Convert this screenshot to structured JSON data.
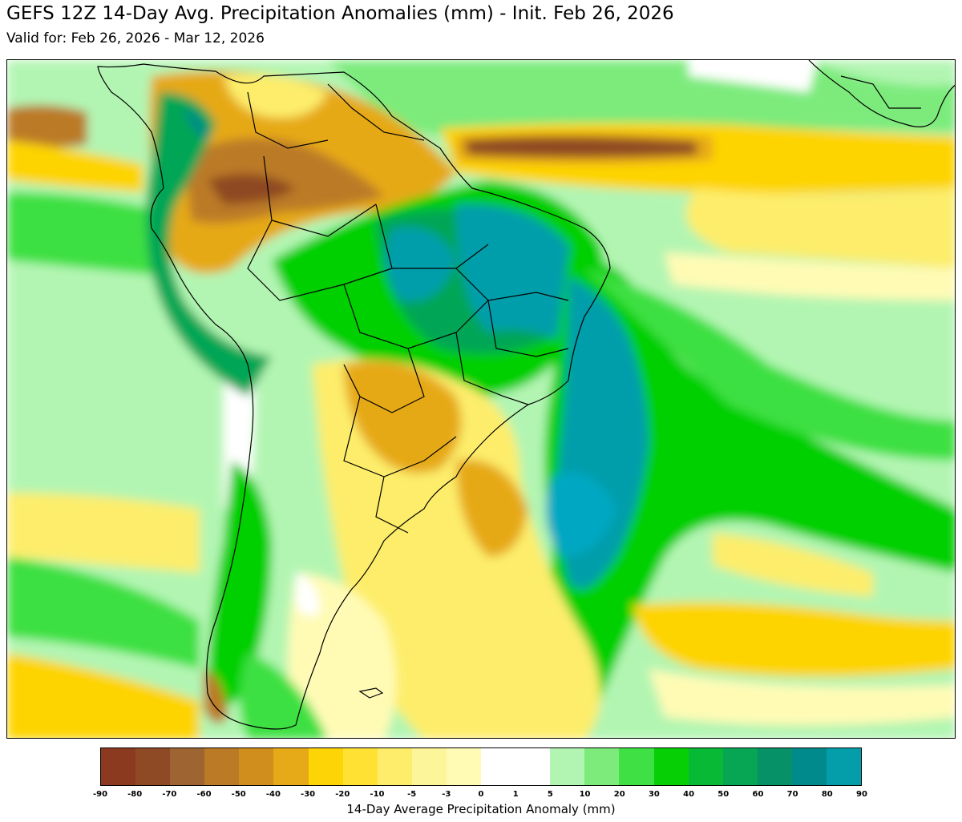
{
  "header": {
    "title": "GEFS 12Z 14-Day Avg. Precipitation Anomalies (mm) - Init. Feb 26, 2026",
    "valid": "Valid for: Feb 26, 2026 - Mar 12, 2026"
  },
  "colorbar": {
    "label": "14-Day Average Precipitation Anomaly (mm)",
    "ticks": [
      "-90",
      "-80",
      "-70",
      "-60",
      "-50",
      "-40",
      "-30",
      "-20",
      "-10",
      "-5",
      "-3",
      "0",
      "1",
      "5",
      "10",
      "20",
      "30",
      "40",
      "50",
      "60",
      "70",
      "80",
      "90"
    ],
    "colors": [
      "#8b3a1f",
      "#8e4a24",
      "#9e6432",
      "#bb7a25",
      "#d08f1c",
      "#e6a918",
      "#fdd406",
      "#fee132",
      "#fded6a",
      "#fdf599",
      "#fffbb5",
      "#ffffff",
      "#ffffff",
      "#b2f5b2",
      "#7ceb7c",
      "#3ee043",
      "#06cf06",
      "#07b935",
      "#06a655",
      "#069166",
      "#018a8c",
      "#049eab",
      "#00a7c2"
    ]
  },
  "map": {
    "region": "South America and South Atlantic",
    "palette": {
      "brown_dark": "#8e4a24",
      "brown": "#bb7a25",
      "orange": "#e6a918",
      "yellow": "#fdd406",
      "light_yellow": "#fded6a",
      "pale_yellow": "#fffbb5",
      "light_green": "#b2f5b2",
      "green": "#7ceb7c",
      "mid_green": "#3ee043",
      "bright_green": "#06cf06",
      "dark_green": "#06a655",
      "teal": "#018a8c",
      "cyan": "#00a7c2"
    }
  }
}
